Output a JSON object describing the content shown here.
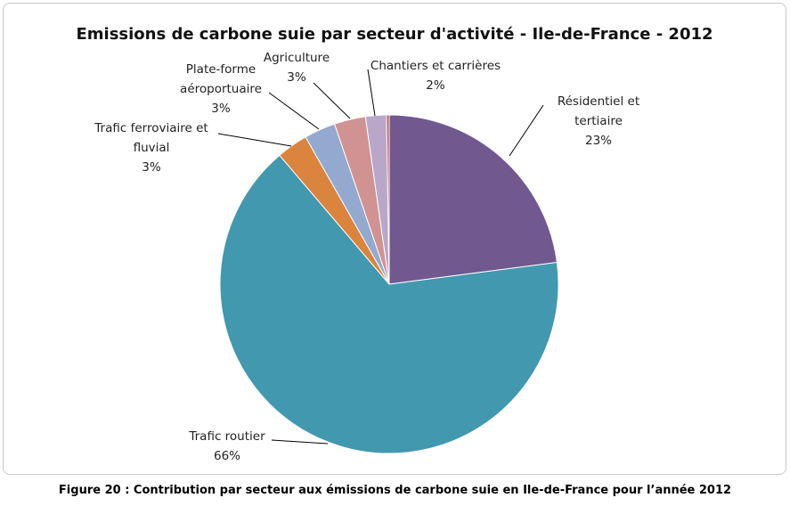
{
  "caption": "Figure 20 : Contribution par secteur aux émissions de carbone suie  en Ile-de-France pour l’année 2012",
  "chart_data": {
    "type": "pie",
    "title": "Emissions de carbone suie par secteur d'activité - Ile-de-France - 2012",
    "slices": [
      {
        "label": "Résidentiel et tertiaire",
        "label_lines": [
          "Résidentiel et",
          "tertiaire"
        ],
        "pct_label": "23%",
        "value": 23,
        "color": "#71588f"
      },
      {
        "label": "Trafic routier",
        "label_lines": [
          "Trafic routier"
        ],
        "pct_label": "66%",
        "value": 66,
        "color": "#4198af"
      },
      {
        "label": "Trafic ferroviaire et fluvial",
        "label_lines": [
          "Trafic ferroviaire et",
          "fluvial"
        ],
        "pct_label": "3%",
        "value": 3,
        "color": "#db843d"
      },
      {
        "label": "Plate-forme aéroportuaire",
        "label_lines": [
          "Plate-forme",
          "aéroportuaire"
        ],
        "pct_label": "3%",
        "value": 3,
        "color": "#93a9cf"
      },
      {
        "label": "Agriculture",
        "label_lines": [
          "Agriculture"
        ],
        "pct_label": "3%",
        "value": 3,
        "color": "#d19392"
      },
      {
        "label": "Chantiers et carrières",
        "label_lines": [
          "Chantiers et carrières"
        ],
        "pct_label": "2%",
        "value": 2,
        "color": "#b9a7c9"
      },
      {
        "label": "",
        "label_lines": [],
        "pct_label": "",
        "value": 0.25,
        "color": "#c0504d"
      }
    ]
  }
}
